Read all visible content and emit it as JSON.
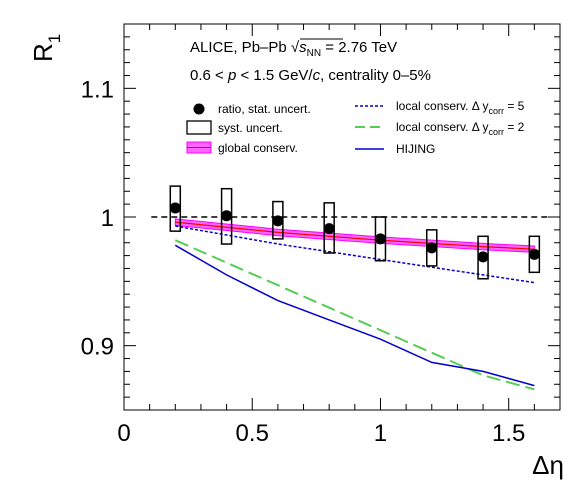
{
  "chart_data": {
    "type": "scatter",
    "xlabel": "Δη",
    "ylabel": "R1",
    "ylabel_main": "R",
    "ylabel_sub": "1",
    "xlim": [
      0,
      1.7
    ],
    "ylim": [
      0.85,
      1.15
    ],
    "xticks": [
      0,
      0.5,
      1,
      1.5
    ],
    "xtick_labels": [
      "0",
      "0.5",
      "1",
      "1.5"
    ],
    "yticks": [
      0.9,
      1.0,
      1.1
    ],
    "ytick_labels": [
      "0.9",
      "1",
      "1.1"
    ],
    "annotations": {
      "line1_a": "ALICE, Pb–Pb ",
      "line1_s": "s",
      "line1_nn": "NN",
      "line1_b": " = 2.76 TeV",
      "line2_a": "0.6 < ",
      "line2_p": "p",
      "line2_b": " < 1.5 GeV/",
      "line2_c": "c",
      "line2_d": ", centrality 0–5%"
    },
    "legend": {
      "ratio": "ratio, stat. uncert.",
      "syst": "syst. uncert.",
      "global": "global conserv.",
      "local5_a": "local conserv. Δ y",
      "local5_sub": "corr",
      "local5_b": " = 5",
      "local2_a": "local conserv. Δ y",
      "local2_sub": "corr",
      "local2_b": " = 2",
      "hijing": "HIJING"
    },
    "colors": {
      "data": "#000000",
      "global": "#ff00ff",
      "global_edge": "#ff0000",
      "local5": "#0000cc",
      "local2": "#55cc55",
      "hijing": "#0000cc",
      "reference": "#000000"
    },
    "reference_line": 1.0,
    "data_points": {
      "x": [
        0.2,
        0.4,
        0.6,
        0.8,
        1.0,
        1.2,
        1.4,
        1.6
      ],
      "y": [
        1.007,
        1.001,
        0.997,
        0.991,
        0.983,
        0.976,
        0.969,
        0.971
      ],
      "syst_low": [
        0.989,
        0.979,
        0.983,
        0.972,
        0.966,
        0.962,
        0.952,
        0.957
      ],
      "syst_high": [
        1.024,
        1.022,
        1.012,
        1.011,
        1.0,
        0.99,
        0.985,
        0.985
      ]
    },
    "series": [
      {
        "name": "global conserv.",
        "x": [
          0.2,
          0.6,
          1.0,
          1.4,
          1.6
        ],
        "y": [
          0.996,
          0.988,
          0.982,
          0.977,
          0.975
        ]
      },
      {
        "name": "local conserv. Δ ycorr = 5",
        "x": [
          0.2,
          0.6,
          1.0,
          1.4,
          1.6
        ],
        "y": [
          0.993,
          0.979,
          0.967,
          0.955,
          0.949
        ]
      },
      {
        "name": "local conserv. Δ ycorr = 2",
        "x": [
          0.2,
          0.6,
          1.0,
          1.4,
          1.6
        ],
        "y": [
          0.982,
          0.947,
          0.912,
          0.877,
          0.866
        ]
      },
      {
        "name": "HIJING",
        "x": [
          0.2,
          0.4,
          0.6,
          0.8,
          1.0,
          1.2,
          1.4,
          1.6
        ],
        "y": [
          0.978,
          0.955,
          0.935,
          0.92,
          0.905,
          0.887,
          0.88,
          0.869
        ]
      }
    ]
  }
}
